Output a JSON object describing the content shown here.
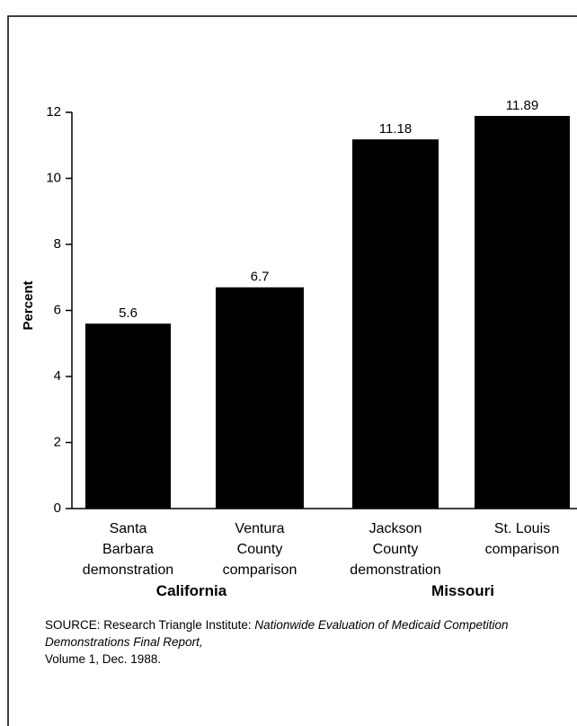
{
  "chart_data": {
    "type": "bar",
    "y_label": "Percent",
    "categories": [
      "Santa\nBarbara\ndemonstration",
      "Ventura\nCounty\ncomparison",
      "Jackson\nCounty\ndemonstration",
      "St. Louis\ncomparison"
    ],
    "values": [
      5.6,
      6.7,
      11.18,
      11.89
    ],
    "color": "#000000",
    "ylim": [
      0,
      12
    ],
    "yticks": [
      0,
      2,
      4,
      6,
      8,
      10,
      12
    ],
    "groups": [
      "California",
      "Missouri"
    ],
    "source": {
      "prefix": "SOURCE: Research Triangle Institute: ",
      "title": "Nationwide Evaluation of Medicaid Competition Demonstrations Final Report,",
      "suffix": " Volume 1, Dec. 1988."
    }
  }
}
